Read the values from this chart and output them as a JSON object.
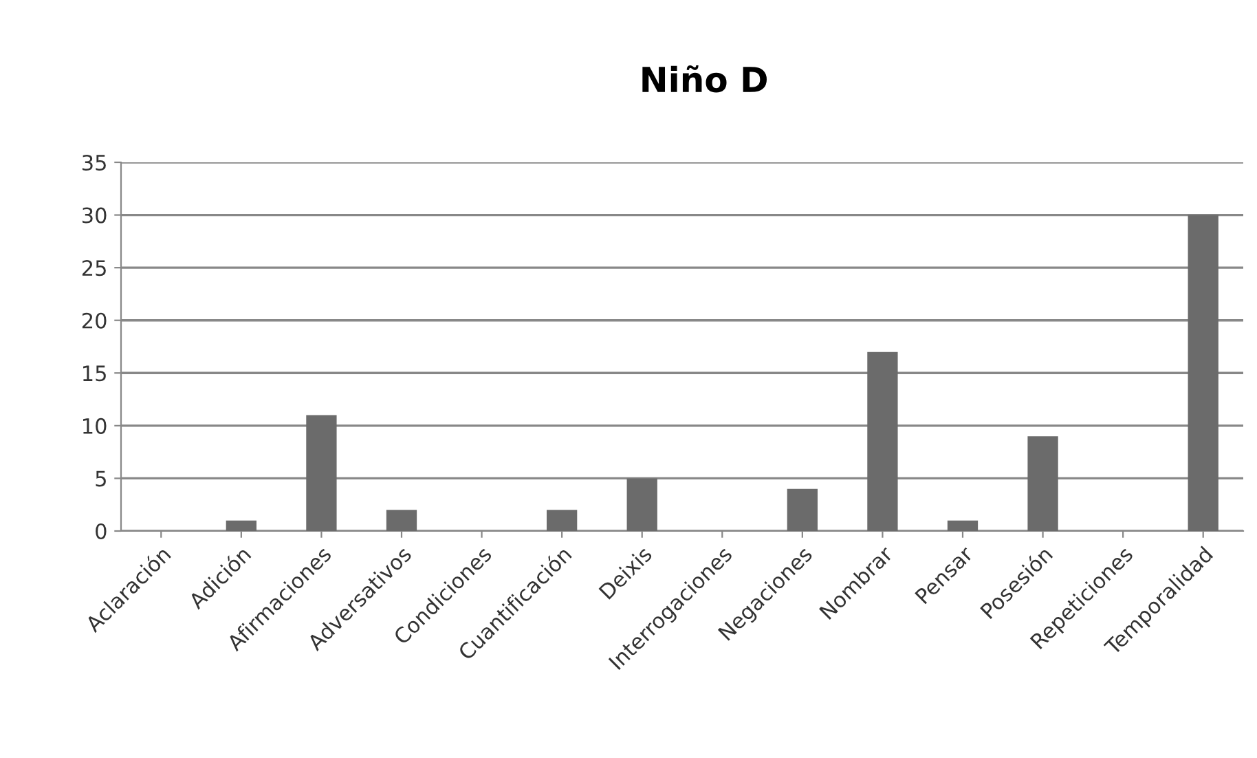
{
  "chart_data": {
    "type": "bar",
    "title": "Niño D",
    "categories": [
      "Aclaración",
      "Adición",
      "Afirmaciones",
      "Adversativos",
      "Condiciones",
      "Cuantificación",
      "Deixis",
      "Interrogaciones",
      "Negaciones",
      "Nombrar",
      "Pensar",
      "Posesión",
      "Repeticiones",
      "Temporalidad"
    ],
    "values": [
      0,
      1,
      11,
      2,
      0,
      2,
      5,
      0,
      4,
      17,
      1,
      9,
      0,
      30
    ],
    "color": "#6b6b6b",
    "ylim": [
      0,
      35
    ],
    "yticks": [
      0,
      5,
      10,
      15,
      20,
      25,
      30,
      35
    ],
    "grid": "y",
    "legend": false
  }
}
